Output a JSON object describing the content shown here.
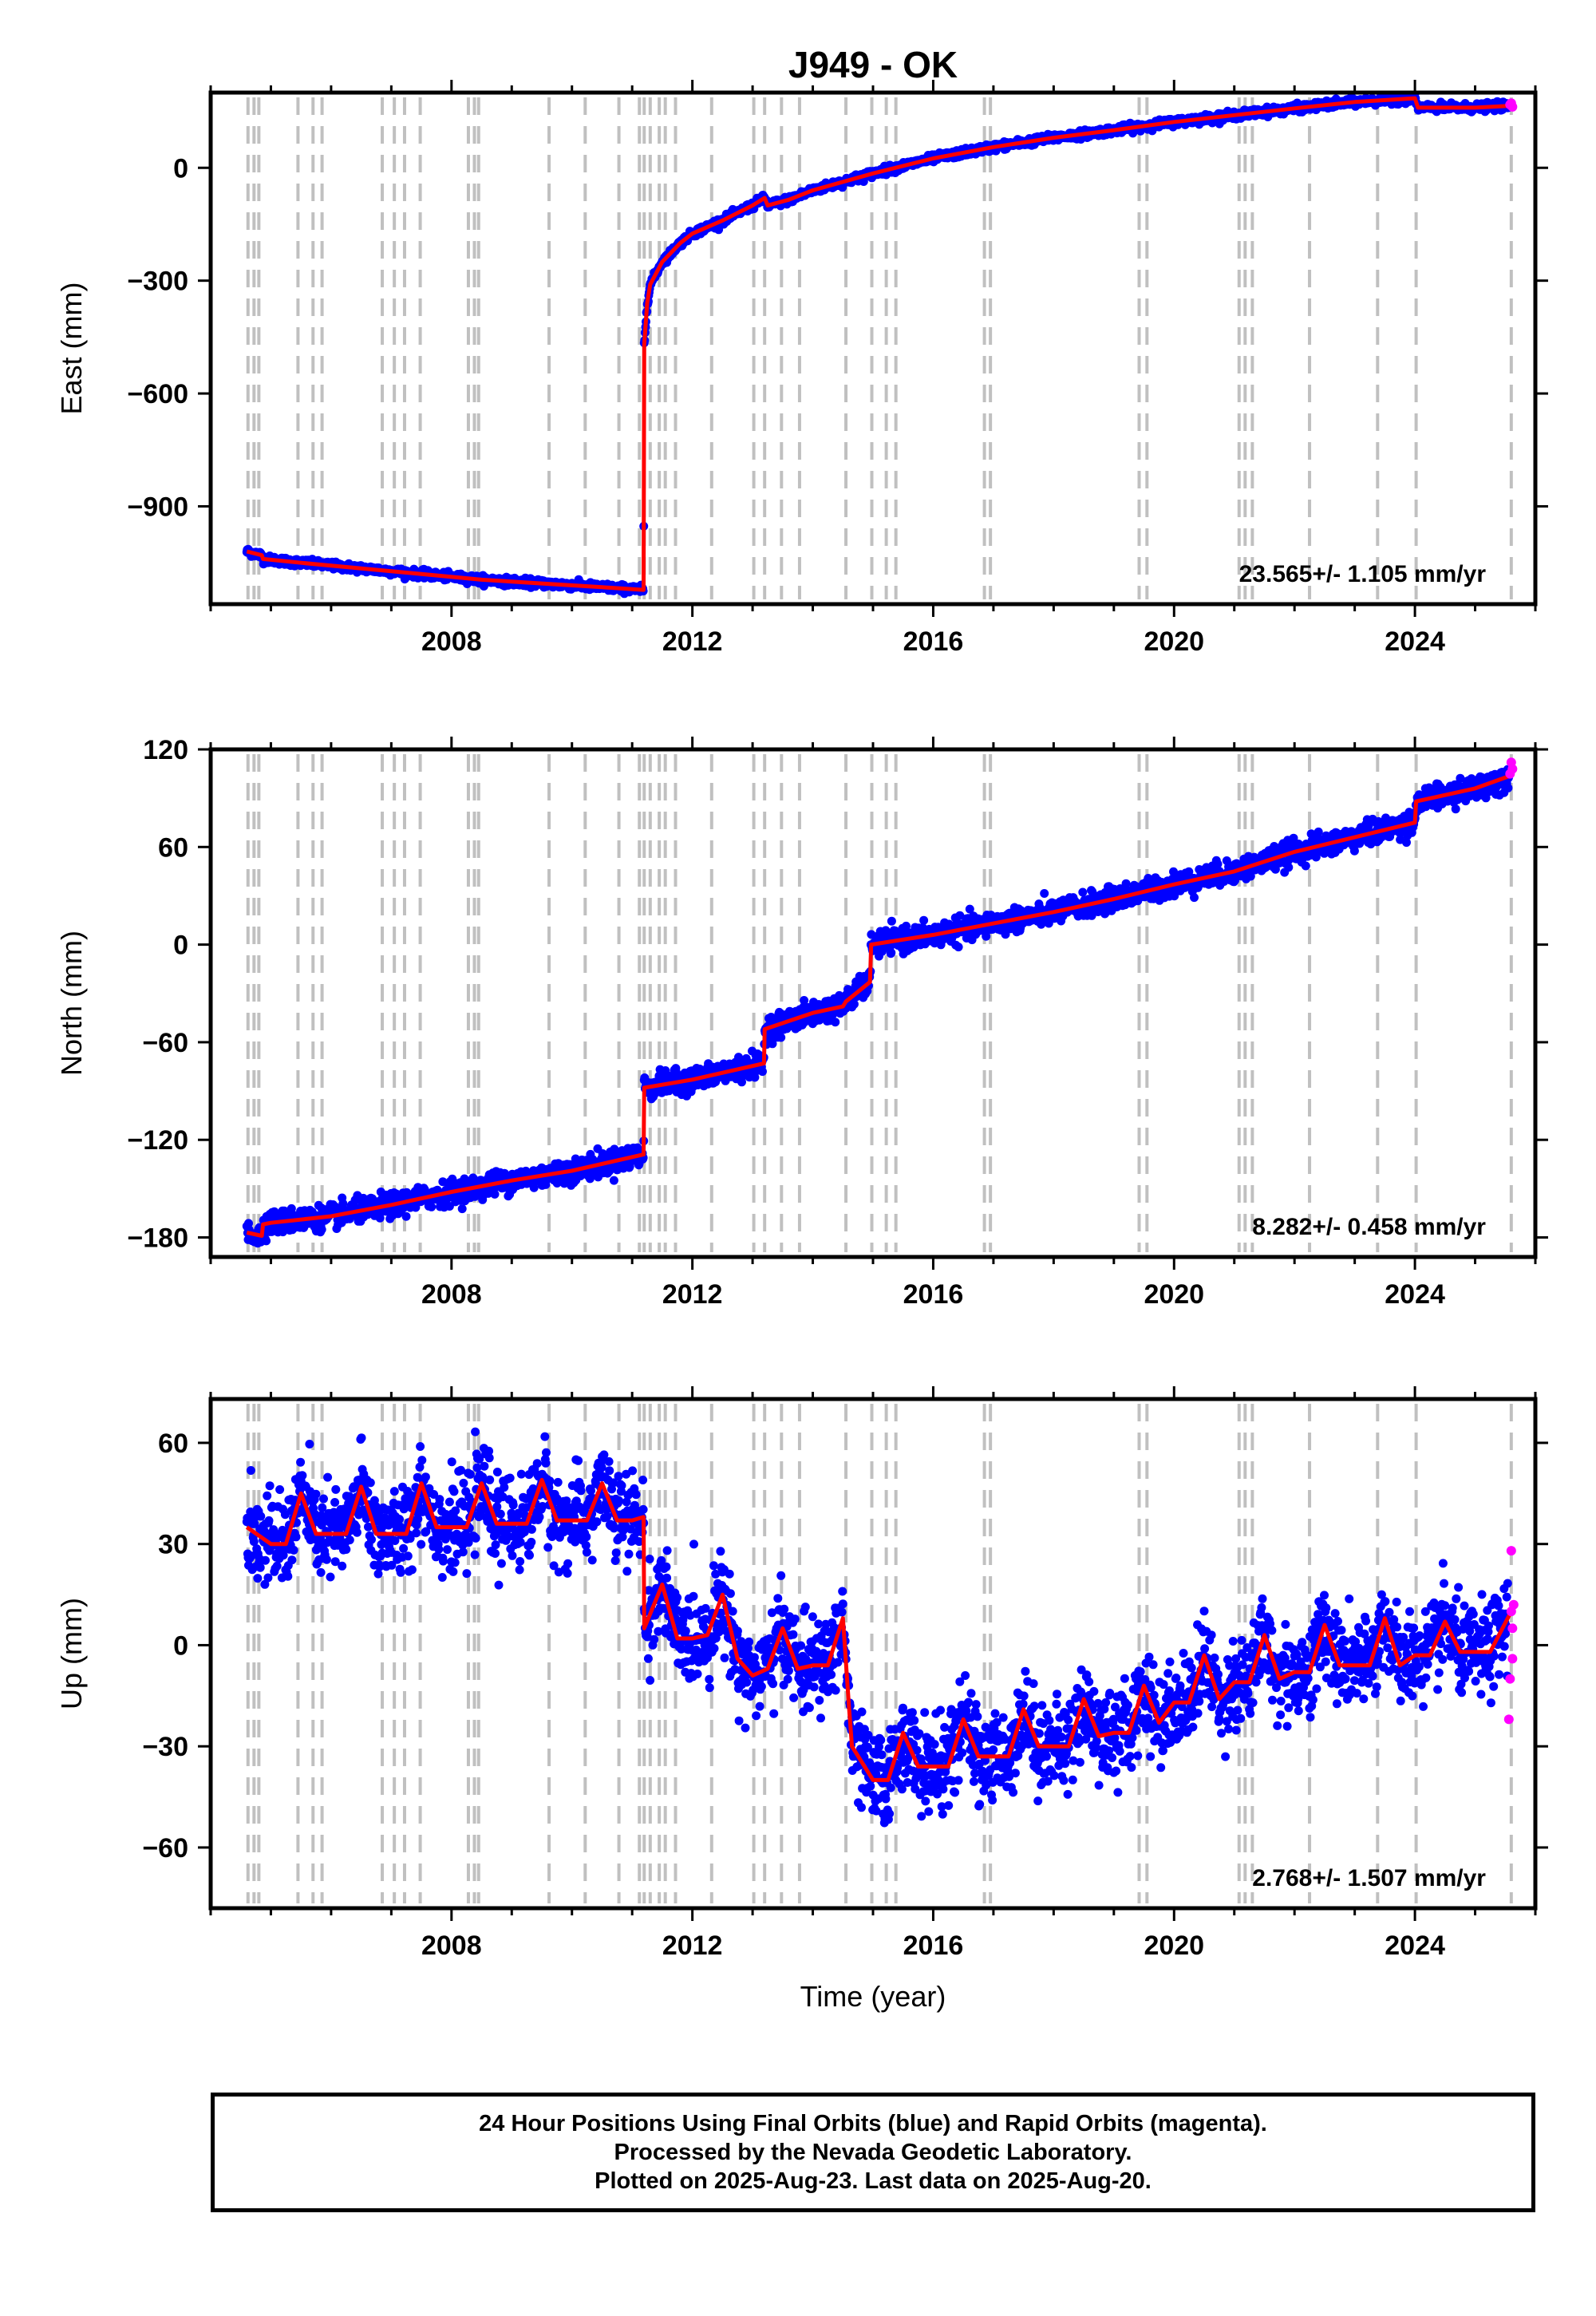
{
  "title": "J949 - OK",
  "xlabel": "Time (year)",
  "x_ticks": [
    2008,
    2012,
    2016,
    2020,
    2024
  ],
  "xlim": [
    2004.0,
    2026.0
  ],
  "colors": {
    "final": "#0000ff",
    "rapid": "#ff00ff",
    "model": "#ff0000",
    "event_lines": "#c0c0c0"
  },
  "event_lines": [
    2004.62,
    2004.72,
    2004.8,
    2005.45,
    2005.7,
    2005.85,
    2006.85,
    2007.05,
    2007.22,
    2007.48,
    2008.28,
    2008.38,
    2008.45,
    2009.62,
    2010.22,
    2010.78,
    2011.12,
    2011.2,
    2011.3,
    2011.45,
    2011.55,
    2011.72,
    2012.32,
    2013.02,
    2013.2,
    2013.48,
    2013.78,
    2014.55,
    2014.98,
    2015.22,
    2015.38,
    2016.85,
    2016.95,
    2019.42,
    2019.55,
    2021.08,
    2021.18,
    2021.3,
    2022.25,
    2023.38,
    2024.02,
    2025.6
  ],
  "footer": {
    "line1": "24 Hour Positions Using Final Orbits (blue) and Rapid Orbits (magenta).",
    "line2": "Processed by the Nevada Geodetic Laboratory.",
    "line3": "Plotted on 2025-Aug-23. Last data on 2025-Aug-20."
  },
  "chart_data": [
    {
      "type": "scatter",
      "component": "east",
      "ylabel": "East (mm)",
      "ylim": [
        -1160,
        200
      ],
      "y_ticks": [
        0,
        -300,
        -600,
        -900
      ],
      "rate_text": "23.565+/- 1.105 mm/yr",
      "noise": 5,
      "series": [
        {
          "name": "model",
          "x": [
            2004.6,
            2004.85,
            2004.87,
            2005.5,
            2006.5,
            2007.5,
            2008.5,
            2009.5,
            2010.5,
            2011.19,
            2011.2,
            2011.25,
            2011.3,
            2011.5,
            2011.8,
            2012.0,
            2012.5,
            2013.0,
            2013.2,
            2013.25,
            2013.6,
            2014.0,
            2015.0,
            2016.0,
            2017.0,
            2018.0,
            2019.0,
            2020.0,
            2021.0,
            2022.0,
            2023.0,
            2024.0,
            2024.05,
            2025.0,
            2025.6
          ],
          "y": [
            -1020,
            -1030,
            -1040,
            -1050,
            -1065,
            -1080,
            -1095,
            -1105,
            -1115,
            -1122,
            -470,
            -360,
            -310,
            -250,
            -200,
            -175,
            -140,
            -100,
            -80,
            -100,
            -85,
            -60,
            -15,
            25,
            55,
            80,
            100,
            122,
            140,
            158,
            175,
            185,
            160,
            160,
            165
          ]
        },
        {
          "name": "rapid",
          "x": [
            2025.58,
            2025.6,
            2025.62
          ],
          "y": [
            168,
            172,
            162
          ]
        }
      ]
    },
    {
      "type": "scatter",
      "component": "north",
      "ylabel": "North (mm)",
      "ylim": [
        -192,
        120
      ],
      "y_ticks": [
        120,
        60,
        0,
        -60,
        -120,
        -180
      ],
      "rate_text": "8.282+/- 0.458 mm/yr",
      "noise": 3.5,
      "series": [
        {
          "name": "model",
          "x": [
            2004.6,
            2004.85,
            2004.87,
            2005.0,
            2006.0,
            2007.0,
            2008.0,
            2009.0,
            2010.0,
            2011.19,
            2011.2,
            2012.0,
            2013.19,
            2013.2,
            2014.0,
            2014.5,
            2014.55,
            2014.95,
            2014.97,
            2016.0,
            2017.0,
            2018.0,
            2019.0,
            2020.0,
            2021.0,
            2022.0,
            2023.0,
            2024.0,
            2024.02,
            2025.0,
            2025.6
          ],
          "y": [
            -177,
            -179,
            -172,
            -171,
            -167,
            -160,
            -152,
            -145,
            -139,
            -129,
            -88,
            -83,
            -73,
            -52,
            -42,
            -38,
            -35,
            -23,
            0,
            6,
            13,
            20,
            28,
            37,
            45,
            57,
            66,
            75,
            88,
            96,
            104
          ]
        },
        {
          "name": "rapid",
          "x": [
            2025.58,
            2025.6,
            2025.62
          ],
          "y": [
            105,
            112,
            108
          ]
        }
      ]
    },
    {
      "type": "scatter",
      "component": "up",
      "ylabel": "Up (mm)",
      "ylim": [
        -78,
        73
      ],
      "y_ticks": [
        60,
        30,
        0,
        -30,
        -60
      ],
      "rate_text": "2.768+/- 1.507 mm/yr",
      "noise": 6.5,
      "series": [
        {
          "name": "model",
          "x": [
            2004.6,
            2005.0,
            2005.25,
            2005.5,
            2005.75,
            2006.0,
            2006.25,
            2006.5,
            2006.75,
            2007.0,
            2007.25,
            2007.5,
            2007.75,
            2008.0,
            2008.25,
            2008.5,
            2008.75,
            2009.0,
            2009.25,
            2009.5,
            2009.75,
            2010.0,
            2010.25,
            2010.5,
            2010.75,
            2011.0,
            2011.19,
            2011.2,
            2011.5,
            2011.75,
            2012.0,
            2012.25,
            2012.5,
            2012.75,
            2013.0,
            2013.25,
            2013.5,
            2013.75,
            2014.0,
            2014.25,
            2014.5,
            2014.6,
            2014.65,
            2015.0,
            2015.25,
            2015.5,
            2015.75,
            2016.0,
            2016.25,
            2016.5,
            2016.75,
            2017.0,
            2017.25,
            2017.5,
            2017.75,
            2018.0,
            2018.25,
            2018.5,
            2018.75,
            2019.0,
            2019.25,
            2019.5,
            2019.75,
            2020.0,
            2020.25,
            2020.5,
            2020.75,
            2021.0,
            2021.25,
            2021.5,
            2021.75,
            2022.0,
            2022.25,
            2022.5,
            2022.75,
            2023.0,
            2023.25,
            2023.5,
            2023.75,
            2024.0,
            2024.25,
            2024.5,
            2024.75,
            2025.0,
            2025.25,
            2025.6
          ],
          "y": [
            35,
            30,
            30,
            45,
            33,
            33,
            33,
            47,
            33,
            33,
            33,
            48,
            35,
            35,
            35,
            48,
            36,
            36,
            36,
            49,
            37,
            37,
            37,
            48,
            37,
            37,
            38,
            5,
            18,
            2,
            2,
            3,
            15,
            -4,
            -9,
            -7,
            5,
            -7,
            -6,
            -6,
            8,
            -18,
            -30,
            -40,
            -40,
            -26,
            -36,
            -36,
            -36,
            -22,
            -33,
            -33,
            -33,
            -19,
            -30,
            -30,
            -30,
            -16,
            -27,
            -26,
            -26,
            -12,
            -23,
            -17,
            -17,
            -3,
            -16,
            -11,
            -11,
            3,
            -10,
            -8,
            -8,
            6,
            -6,
            -6,
            -6,
            8,
            -6,
            -3,
            -3,
            7,
            -2,
            -2,
            -2,
            10
          ]
        },
        {
          "name": "rapid",
          "x": [
            2025.56,
            2025.58,
            2025.6,
            2025.6,
            2025.62,
            2025.62,
            2025.64
          ],
          "y": [
            -22,
            -10,
            28,
            10,
            5,
            -4,
            12
          ]
        }
      ]
    }
  ]
}
